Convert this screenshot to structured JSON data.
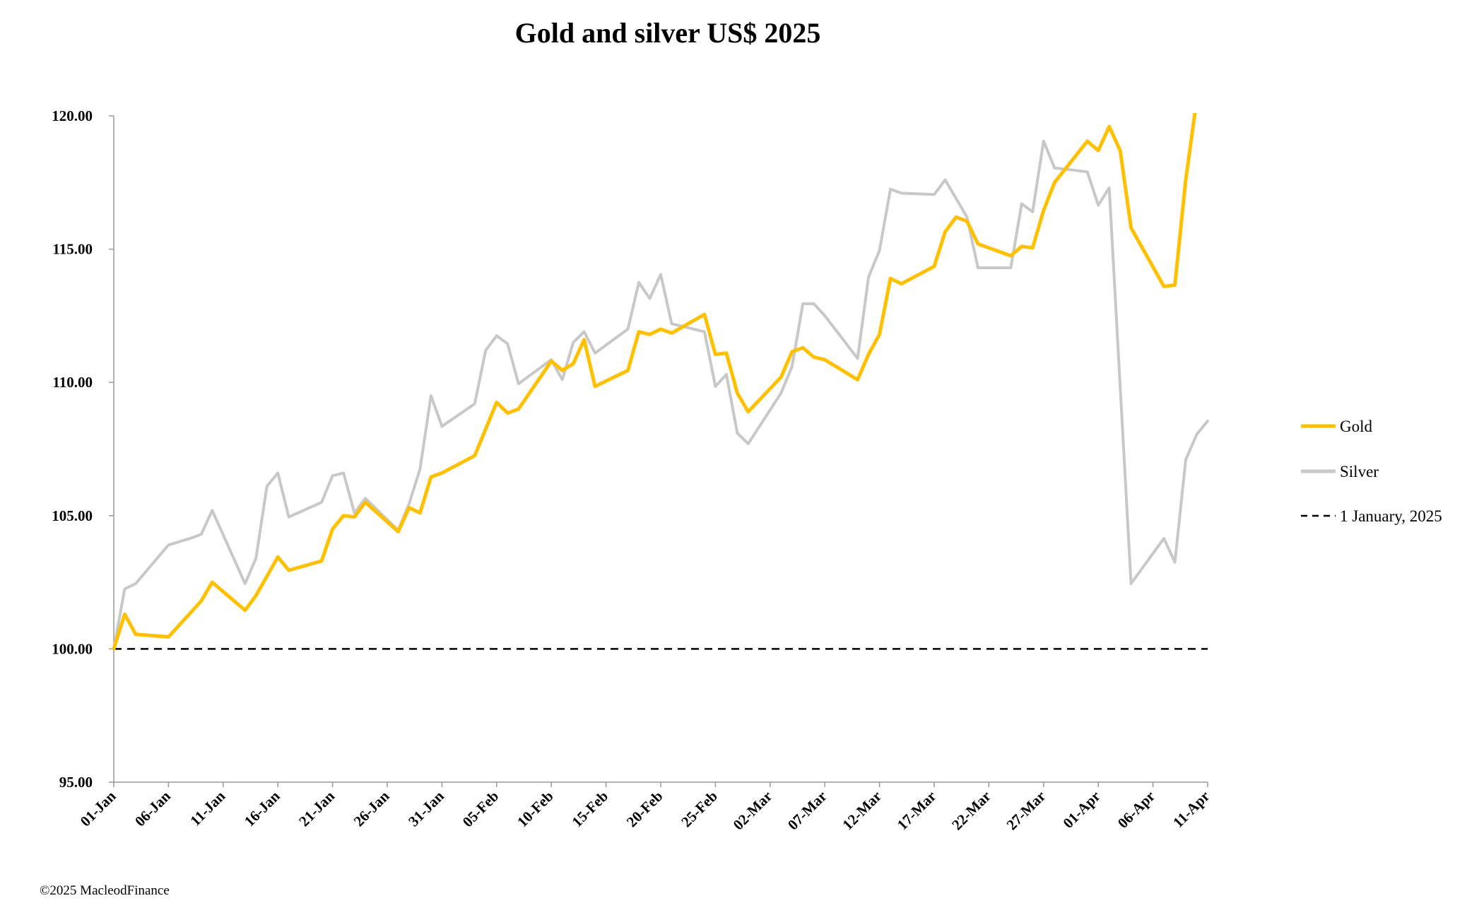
{
  "chart_data": {
    "type": "line",
    "title": "Gold and silver  US$ 2025",
    "xlabel": "",
    "ylabel": "",
    "x_unit": "days since 01-Jan-2025",
    "xlim": [
      0,
      100
    ],
    "ylim": [
      95,
      120
    ],
    "y_ticks": [
      "95.00",
      "100.00",
      "105.00",
      "110.00",
      "115.00",
      "120.00"
    ],
    "y_tick_values": [
      95,
      100,
      105,
      110,
      115,
      120
    ],
    "x_ticks": [
      "01-Jan",
      "06-Jan",
      "11-Jan",
      "16-Jan",
      "21-Jan",
      "26-Jan",
      "31-Jan",
      "05-Feb",
      "10-Feb",
      "15-Feb",
      "20-Feb",
      "25-Feb",
      "02-Mar",
      "07-Mar",
      "12-Mar",
      "17-Mar",
      "22-Mar",
      "27-Mar",
      "01-Apr",
      "06-Apr",
      "11-Apr"
    ],
    "x_tick_values": [
      0,
      5,
      10,
      15,
      20,
      25,
      30,
      35,
      40,
      45,
      50,
      55,
      60,
      65,
      70,
      75,
      80,
      85,
      90,
      95,
      100
    ],
    "grid": false,
    "legend_position": "right",
    "series": [
      {
        "name": "Gold",
        "color": "#FFC000",
        "points": [
          [
            0,
            100
          ],
          [
            1,
            101.3
          ],
          [
            2,
            100.55
          ],
          [
            5,
            100.45
          ],
          [
            7,
            101.35
          ],
          [
            8,
            101.8
          ],
          [
            9,
            102.5
          ],
          [
            12,
            101.45
          ],
          [
            13,
            102.0
          ],
          [
            15,
            103.45
          ],
          [
            16,
            102.95
          ],
          [
            19,
            103.3
          ],
          [
            20,
            104.5
          ],
          [
            21,
            105.0
          ],
          [
            22,
            104.95
          ],
          [
            23,
            105.5
          ],
          [
            26,
            104.4
          ],
          [
            27,
            105.3
          ],
          [
            28,
            105.1
          ],
          [
            29,
            106.45
          ],
          [
            30,
            106.6
          ],
          [
            33,
            107.25
          ],
          [
            34,
            108.25
          ],
          [
            35,
            109.25
          ],
          [
            36,
            108.85
          ],
          [
            37,
            109.0
          ],
          [
            40,
            110.8
          ],
          [
            41,
            110.45
          ],
          [
            42,
            110.7
          ],
          [
            43,
            111.6
          ],
          [
            44,
            109.85
          ],
          [
            47,
            110.45
          ],
          [
            48,
            111.9
          ],
          [
            49,
            111.8
          ],
          [
            50,
            112.0
          ],
          [
            51,
            111.85
          ],
          [
            54,
            112.55
          ],
          [
            55,
            111.05
          ],
          [
            56,
            111.1
          ],
          [
            57,
            109.6
          ],
          [
            58,
            108.9
          ],
          [
            61,
            110.2
          ],
          [
            62,
            111.15
          ],
          [
            63,
            111.3
          ],
          [
            64,
            110.95
          ],
          [
            65,
            110.85
          ],
          [
            68,
            110.1
          ],
          [
            69,
            111.05
          ],
          [
            70,
            111.8
          ],
          [
            71,
            113.9
          ],
          [
            72,
            113.7
          ],
          [
            75,
            114.35
          ],
          [
            76,
            115.65
          ],
          [
            77,
            116.2
          ],
          [
            78,
            116.05
          ],
          [
            79,
            115.2
          ],
          [
            82,
            114.75
          ],
          [
            83,
            115.1
          ],
          [
            84,
            115.05
          ],
          [
            85,
            116.45
          ],
          [
            86,
            117.5
          ],
          [
            89,
            119.05
          ],
          [
            90,
            118.7
          ],
          [
            91,
            119.6
          ],
          [
            92,
            118.7
          ],
          [
            93,
            115.8
          ],
          [
            96,
            113.6
          ],
          [
            97,
            113.65
          ],
          [
            98,
            117.6
          ],
          [
            99,
            120.6
          ]
        ]
      },
      {
        "name": "Silver",
        "color": "#C8C8C8",
        "points": [
          [
            0,
            100
          ],
          [
            1,
            102.25
          ],
          [
            2,
            102.45
          ],
          [
            5,
            103.9
          ],
          [
            7,
            104.15
          ],
          [
            8,
            104.3
          ],
          [
            9,
            105.2
          ],
          [
            12,
            102.45
          ],
          [
            13,
            103.4
          ],
          [
            14,
            106.1
          ],
          [
            15,
            106.6
          ],
          [
            16,
            104.95
          ],
          [
            19,
            105.5
          ],
          [
            20,
            106.5
          ],
          [
            21,
            106.6
          ],
          [
            22,
            105.1
          ],
          [
            23,
            105.65
          ],
          [
            26,
            104.45
          ],
          [
            27,
            105.45
          ],
          [
            28,
            106.75
          ],
          [
            29,
            109.5
          ],
          [
            30,
            108.35
          ],
          [
            33,
            109.2
          ],
          [
            34,
            111.2
          ],
          [
            35,
            111.75
          ],
          [
            36,
            111.45
          ],
          [
            37,
            109.95
          ],
          [
            40,
            110.85
          ],
          [
            41,
            110.1
          ],
          [
            42,
            111.5
          ],
          [
            43,
            111.9
          ],
          [
            44,
            111.1
          ],
          [
            47,
            112.0
          ],
          [
            48,
            113.75
          ],
          [
            49,
            113.15
          ],
          [
            50,
            114.05
          ],
          [
            51,
            112.2
          ],
          [
            54,
            111.9
          ],
          [
            55,
            109.85
          ],
          [
            56,
            110.3
          ],
          [
            57,
            108.1
          ],
          [
            58,
            107.7
          ],
          [
            61,
            109.6
          ],
          [
            62,
            110.6
          ],
          [
            63,
            112.95
          ],
          [
            64,
            112.95
          ],
          [
            65,
            112.5
          ],
          [
            68,
            110.9
          ],
          [
            69,
            113.95
          ],
          [
            70,
            114.95
          ],
          [
            71,
            117.25
          ],
          [
            72,
            117.1
          ],
          [
            75,
            117.05
          ],
          [
            76,
            117.6
          ],
          [
            78,
            116.2
          ],
          [
            79,
            114.3
          ],
          [
            82,
            114.3
          ],
          [
            83,
            116.7
          ],
          [
            84,
            116.4
          ],
          [
            85,
            119.05
          ],
          [
            86,
            118.05
          ],
          [
            89,
            117.9
          ],
          [
            90,
            116.65
          ],
          [
            91,
            117.3
          ],
          [
            93,
            102.45
          ],
          [
            96,
            104.15
          ],
          [
            97,
            103.25
          ],
          [
            98,
            107.1
          ],
          [
            99,
            108.05
          ],
          [
            100,
            108.55
          ]
        ]
      },
      {
        "name": "1 January, 2025",
        "color": "#000000",
        "style": "dashed",
        "points": [
          [
            0,
            100
          ],
          [
            100,
            100
          ]
        ]
      }
    ]
  },
  "footer": {
    "copyright": "©2025 MacleodFinance"
  }
}
